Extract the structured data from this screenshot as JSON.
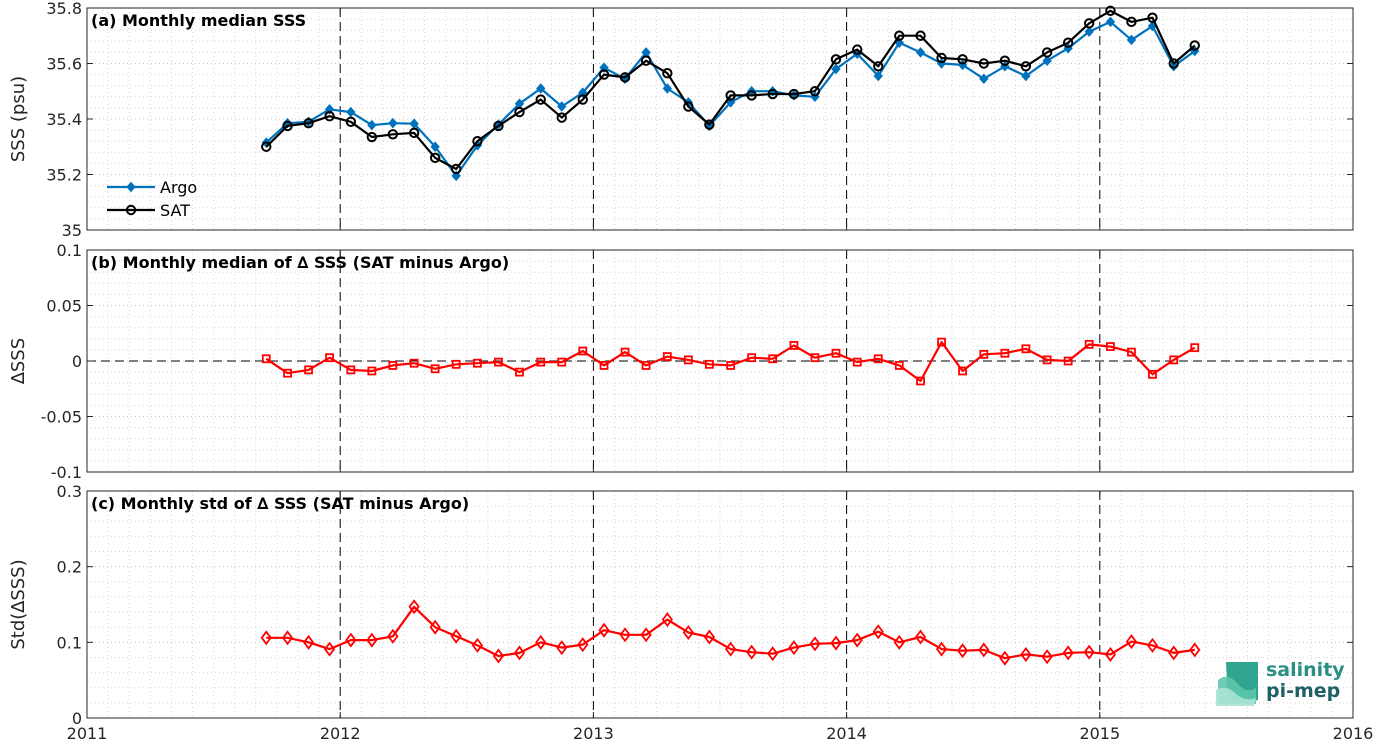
{
  "x_axis": {
    "range": [
      2011,
      2016
    ],
    "ticks": [
      "2011",
      "2012",
      "2013",
      "2014",
      "2015",
      "2016"
    ]
  },
  "colors": {
    "argo": "#0072BD",
    "sat": "#000000",
    "delta": "#FF0000"
  },
  "x_months": [
    2011.708,
    2011.792,
    2011.875,
    2011.958,
    2012.042,
    2012.125,
    2012.208,
    2012.292,
    2012.375,
    2012.458,
    2012.542,
    2012.625,
    2012.708,
    2012.792,
    2012.875,
    2012.958,
    2013.042,
    2013.125,
    2013.208,
    2013.292,
    2013.375,
    2013.458,
    2013.542,
    2013.625,
    2013.708,
    2013.792,
    2013.875,
    2013.958,
    2014.042,
    2014.125,
    2014.208,
    2014.292,
    2014.375,
    2014.458,
    2014.542,
    2014.625,
    2014.708,
    2014.792,
    2014.875,
    2014.958,
    2015.042,
    2015.125,
    2015.208,
    2015.292,
    2015.375
  ],
  "logo": {
    "line1": "salinity",
    "line2": "pi-mep"
  },
  "chart_data": [
    {
      "type": "line",
      "title": "(a) Monthly median SSS",
      "ylabel": "SSS (psu)",
      "ylim": [
        35,
        35.8
      ],
      "yticks": [
        "35",
        "35.2",
        "35.4",
        "35.6",
        "35.8"
      ],
      "legend": {
        "placement": "bottom-left",
        "entries": [
          "Argo",
          "SAT"
        ]
      },
      "grid": "dotted",
      "series": [
        {
          "name": "Argo",
          "marker": "filled-diamond",
          "values": [
            35.315,
            35.385,
            35.39,
            35.435,
            35.425,
            35.378,
            35.385,
            35.383,
            35.3,
            35.195,
            35.305,
            35.38,
            35.455,
            35.51,
            35.445,
            35.495,
            35.585,
            35.545,
            35.64,
            35.51,
            35.46,
            35.375,
            35.46,
            35.5,
            35.5,
            35.485,
            35.48,
            35.58,
            35.635,
            35.555,
            35.675,
            35.64,
            35.6,
            35.595,
            35.545,
            35.59,
            35.555,
            35.61,
            35.655,
            35.715,
            35.75,
            35.685,
            35.735,
            35.59,
            35.645
          ]
        },
        {
          "name": "SAT",
          "marker": "open-circle",
          "values": [
            35.3,
            35.375,
            35.385,
            35.41,
            35.39,
            35.335,
            35.345,
            35.35,
            35.26,
            35.22,
            35.32,
            35.375,
            35.425,
            35.47,
            35.405,
            35.47,
            35.56,
            35.55,
            35.61,
            35.565,
            35.445,
            35.38,
            35.485,
            35.485,
            35.49,
            35.49,
            35.5,
            35.615,
            35.65,
            35.59,
            35.7,
            35.7,
            35.62,
            35.615,
            35.6,
            35.61,
            35.59,
            35.64,
            35.675,
            35.745,
            35.79,
            35.75,
            35.765,
            35.6,
            35.665
          ]
        }
      ]
    },
    {
      "type": "line",
      "title": "(b) Monthly median of ∆ SSS (SAT minus Argo)",
      "ylabel": "∆SSS",
      "ylim": [
        -0.1,
        0.1
      ],
      "yticks": [
        "-0.1",
        "-0.05",
        "0",
        "0.05",
        "0.1"
      ],
      "zero_line": true,
      "grid": "dotted",
      "series": [
        {
          "name": "",
          "marker": "open-square",
          "values": [
            0.002,
            -0.011,
            -0.008,
            0.003,
            -0.008,
            -0.009,
            -0.004,
            -0.002,
            -0.007,
            -0.003,
            -0.002,
            -0.001,
            -0.01,
            -0.001,
            -0.001,
            0.009,
            -0.004,
            0.008,
            -0.004,
            0.004,
            0.001,
            -0.003,
            -0.004,
            0.003,
            0.002,
            0.014,
            0.003,
            0.007,
            -0.001,
            0.002,
            -0.004,
            -0.018,
            0.017,
            -0.009,
            0.006,
            0.007,
            0.011,
            0.001,
            0.0,
            0.015,
            0.013,
            0.008,
            -0.012,
            0.001,
            0.012
          ]
        }
      ]
    },
    {
      "type": "line",
      "title": "(c) Monthly std of ∆ SSS (SAT minus Argo)",
      "ylabel": "Std(∆SSS)",
      "ylim": [
        0,
        0.3
      ],
      "yticks": [
        "0",
        "0.1",
        "0.2",
        "0.3"
      ],
      "grid": "dotted",
      "series": [
        {
          "name": "",
          "marker": "open-diamond",
          "values": [
            0.106,
            0.106,
            0.1,
            0.091,
            0.103,
            0.103,
            0.108,
            0.147,
            0.12,
            0.108,
            0.096,
            0.082,
            0.086,
            0.1,
            0.093,
            0.097,
            0.116,
            0.11,
            0.11,
            0.13,
            0.113,
            0.107,
            0.091,
            0.087,
            0.085,
            0.093,
            0.098,
            0.099,
            0.103,
            0.114,
            0.1,
            0.107,
            0.091,
            0.089,
            0.09,
            0.079,
            0.084,
            0.081,
            0.086,
            0.087,
            0.084,
            0.101,
            0.096,
            0.086,
            0.09
          ]
        }
      ]
    }
  ]
}
